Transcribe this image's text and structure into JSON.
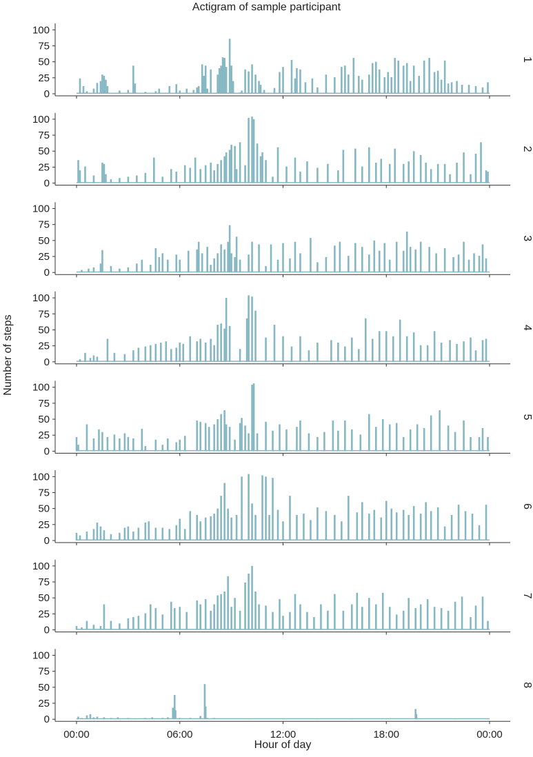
{
  "chart_data": {
    "type": "bar",
    "title": "Actigram of sample participant",
    "xlabel": "Hour of day",
    "ylabel": "Number of steps",
    "x_ticks": [
      "00:00",
      "06:00",
      "12:00",
      "18:00",
      "00:00"
    ],
    "x_range_hours": [
      0,
      24
    ],
    "y_ticks": [
      0,
      25,
      50,
      75,
      100
    ],
    "ylim": [
      0,
      110
    ],
    "bar_color": "#86b8c3",
    "grid": false,
    "panels": [
      {
        "facet_label": "1",
        "x_hour": [
          0.2,
          0.4,
          0.6,
          1.0,
          1.2,
          1.4,
          1.5,
          1.6,
          1.7,
          1.8,
          2.5,
          3.0,
          3.3,
          3.4,
          4.0,
          4.6,
          4.8,
          5.4,
          5.8,
          6.0,
          6.4,
          6.8,
          7.0,
          7.1,
          7.3,
          7.4,
          7.5,
          7.6,
          7.8,
          8.2,
          8.3,
          8.4,
          8.5,
          8.6,
          8.7,
          8.9,
          9.0,
          9.1,
          9.5,
          9.6,
          9.8,
          10.0,
          10.2,
          10.4,
          10.6,
          10.7,
          10.9,
          11.5,
          11.8,
          12.0,
          12.5,
          12.7,
          12.8,
          13.0,
          13.3,
          13.7,
          14.0,
          14.5,
          15.0,
          15.4,
          15.6,
          15.8,
          16.1,
          16.4,
          16.6,
          17.0,
          17.2,
          17.4,
          17.6,
          17.9,
          18.1,
          18.3,
          18.5,
          18.7,
          19.0,
          19.2,
          19.4,
          19.6,
          19.9,
          20.2,
          20.5,
          20.8,
          21.0,
          21.2,
          21.4,
          21.6,
          21.8,
          22.1,
          22.4,
          22.8,
          23.2,
          23.6,
          23.9
        ],
        "values": [
          24,
          12,
          4,
          8,
          17,
          20,
          30,
          28,
          22,
          12,
          5,
          6,
          44,
          16,
          3,
          4,
          8,
          12,
          15,
          5,
          8,
          6,
          10,
          12,
          46,
          28,
          44,
          8,
          38,
          30,
          40,
          44,
          57,
          56,
          42,
          86,
          44,
          20,
          2,
          5,
          38,
          35,
          46,
          30,
          20,
          14,
          6,
          9,
          34,
          42,
          53,
          24,
          40,
          38,
          18,
          24,
          10,
          30,
          26,
          42,
          44,
          30,
          56,
          28,
          22,
          30,
          48,
          50,
          38,
          26,
          34,
          26,
          56,
          52,
          44,
          48,
          20,
          44,
          28,
          52,
          56,
          34,
          36,
          22,
          52,
          16,
          18,
          20,
          14,
          14,
          12,
          10,
          18
        ]
      },
      {
        "facet_label": "2",
        "x_hour": [
          0.1,
          0.2,
          0.5,
          1.0,
          1.5,
          1.6,
          1.7,
          2.0,
          2.5,
          3.0,
          3.5,
          4.0,
          4.5,
          5.0,
          5.5,
          5.8,
          6.3,
          6.6,
          6.9,
          7.2,
          7.5,
          7.8,
          8.0,
          8.2,
          8.4,
          8.6,
          8.7,
          8.9,
          9.0,
          9.2,
          9.3,
          9.5,
          9.8,
          10.0,
          10.2,
          10.3,
          10.5,
          10.7,
          10.8,
          11.0,
          11.4,
          11.7,
          12.2,
          12.7,
          13.0,
          13.4,
          14.0,
          14.6,
          15.2,
          15.5,
          16.2,
          16.6,
          17.0,
          17.4,
          17.7,
          18.2,
          18.5,
          19.0,
          19.3,
          19.6,
          20.0,
          20.3,
          20.6,
          21.0,
          21.4,
          21.7,
          22.1,
          22.5,
          22.9,
          23.2,
          23.5,
          23.8,
          23.9
        ],
        "values": [
          36,
          20,
          26,
          12,
          32,
          30,
          14,
          6,
          8,
          10,
          12,
          16,
          40,
          10,
          22,
          18,
          28,
          24,
          40,
          22,
          28,
          32,
          20,
          30,
          36,
          42,
          48,
          52,
          60,
          58,
          22,
          64,
          28,
          102,
          104,
          100,
          62,
          42,
          48,
          36,
          10,
          56,
          26,
          40,
          18,
          34,
          24,
          30,
          20,
          52,
          54,
          26,
          56,
          32,
          38,
          30,
          54,
          30,
          34,
          50,
          44,
          32,
          22,
          30,
          30,
          14,
          32,
          48,
          14,
          46,
          64,
          20,
          18
        ]
      },
      {
        "facet_label": "3",
        "x_hour": [
          0.3,
          0.7,
          1.0,
          1.4,
          1.5,
          2.0,
          2.5,
          3.0,
          3.5,
          3.8,
          4.3,
          4.6,
          4.8,
          5.0,
          5.3,
          5.8,
          6.0,
          6.5,
          7.0,
          7.1,
          7.3,
          7.6,
          7.8,
          8.0,
          8.2,
          8.4,
          8.6,
          8.8,
          8.9,
          9.0,
          9.2,
          9.3,
          9.5,
          10.0,
          10.2,
          10.6,
          11.0,
          11.3,
          11.7,
          12.0,
          12.4,
          12.7,
          13.0,
          13.6,
          14.0,
          14.5,
          15.0,
          15.3,
          15.8,
          16.2,
          16.6,
          17.0,
          17.3,
          17.6,
          17.9,
          18.2,
          18.6,
          19.0,
          19.2,
          19.4,
          19.7,
          20.0,
          20.5,
          20.9,
          21.4,
          21.9,
          22.2,
          22.5,
          22.8,
          23.1,
          23.4,
          23.6,
          23.8
        ],
        "values": [
          4,
          6,
          8,
          14,
          35,
          10,
          6,
          8,
          14,
          20,
          12,
          38,
          24,
          30,
          20,
          28,
          20,
          34,
          36,
          48,
          30,
          40,
          12,
          22,
          30,
          44,
          36,
          48,
          74,
          30,
          24,
          56,
          20,
          28,
          48,
          44,
          10,
          44,
          20,
          46,
          22,
          48,
          30,
          54,
          16,
          24,
          42,
          48,
          26,
          46,
          40,
          28,
          50,
          34,
          46,
          20,
          48,
          34,
          64,
          40,
          36,
          48,
          40,
          30,
          38,
          24,
          28,
          48,
          20,
          30,
          26,
          44,
          22
        ]
      },
      {
        "facet_label": "4",
        "x_hour": [
          0.2,
          0.5,
          0.8,
          1.0,
          1.2,
          1.8,
          2.2,
          2.8,
          3.3,
          3.6,
          4.0,
          4.3,
          4.6,
          4.9,
          5.2,
          5.5,
          5.8,
          6.0,
          6.2,
          6.6,
          7.0,
          7.2,
          7.5,
          7.8,
          8.0,
          8.2,
          8.4,
          8.6,
          8.7,
          8.9,
          9.5,
          9.9,
          10.0,
          10.2,
          10.4,
          11.0,
          11.5,
          12.0,
          12.5,
          13.0,
          13.5,
          14.0,
          14.8,
          15.2,
          15.6,
          16.0,
          16.4,
          16.8,
          17.2,
          17.6,
          18.0,
          18.4,
          18.8,
          19.2,
          19.6,
          20.0,
          20.4,
          20.8,
          21.2,
          21.7,
          22.1,
          22.5,
          22.9,
          23.2,
          23.6,
          23.8
        ],
        "values": [
          4,
          14,
          6,
          10,
          8,
          36,
          14,
          12,
          18,
          22,
          24,
          26,
          28,
          30,
          32,
          20,
          22,
          30,
          28,
          40,
          32,
          36,
          30,
          36,
          26,
          58,
          60,
          52,
          100,
          56,
          20,
          68,
          104,
          102,
          80,
          38,
          58,
          40,
          24,
          40,
          18,
          30,
          34,
          30,
          24,
          38,
          20,
          68,
          36,
          48,
          48,
          40,
          66,
          40,
          46,
          26,
          26,
          48,
          30,
          34,
          28,
          32,
          38,
          18,
          34,
          36
        ]
      },
      {
        "facet_label": "5",
        "x_hour": [
          0.0,
          0.1,
          0.6,
          1.0,
          1.3,
          1.5,
          1.8,
          2.2,
          2.5,
          2.8,
          3.0,
          3.3,
          3.8,
          4.0,
          4.6,
          5.0,
          5.3,
          5.8,
          6.0,
          6.3,
          7.0,
          7.2,
          7.5,
          7.7,
          8.0,
          8.2,
          8.4,
          8.6,
          8.7,
          8.9,
          9.2,
          9.5,
          9.6,
          9.8,
          10.0,
          10.2,
          10.3,
          10.5,
          11.0,
          11.4,
          11.8,
          12.2,
          12.8,
          13.0,
          13.5,
          14.0,
          14.4,
          14.9,
          15.2,
          15.6,
          16.0,
          16.5,
          17.0,
          17.4,
          17.8,
          18.2,
          18.6,
          19.0,
          19.4,
          19.8,
          20.2,
          20.6,
          21.1,
          21.6,
          22.0,
          22.5,
          22.9,
          23.4,
          23.6,
          23.9
        ],
        "values": [
          22,
          10,
          42,
          20,
          34,
          30,
          22,
          26,
          20,
          28,
          22,
          20,
          35,
          8,
          18,
          10,
          20,
          14,
          18,
          24,
          48,
          46,
          44,
          38,
          42,
          50,
          58,
          64,
          42,
          38,
          18,
          44,
          52,
          40,
          28,
          104,
          106,
          28,
          46,
          32,
          42,
          34,
          38,
          48,
          28,
          22,
          30,
          48,
          32,
          48,
          34,
          26,
          58,
          38,
          50,
          42,
          44,
          22,
          34,
          42,
          36,
          56,
          64,
          40,
          30,
          48,
          22,
          22,
          36,
          22
        ]
      },
      {
        "facet_label": "6",
        "x_hour": [
          0.0,
          0.2,
          0.6,
          1.0,
          1.2,
          1.4,
          1.6,
          2.0,
          2.5,
          2.8,
          3.0,
          3.3,
          3.6,
          4.0,
          4.2,
          4.6,
          5.0,
          5.4,
          5.8,
          6.0,
          6.3,
          6.6,
          7.0,
          7.2,
          7.5,
          7.8,
          8.0,
          8.2,
          8.4,
          8.6,
          8.8,
          9.0,
          9.3,
          9.6,
          10.0,
          10.2,
          10.4,
          10.8,
          11.0,
          11.2,
          11.4,
          11.7,
          12.0,
          12.4,
          12.8,
          13.2,
          13.6,
          14.0,
          14.5,
          15.0,
          15.4,
          15.8,
          16.3,
          16.6,
          17.0,
          17.3,
          17.7,
          18.0,
          18.3,
          18.6,
          19.0,
          19.3,
          19.6,
          20.0,
          20.3,
          20.6,
          21.0,
          21.4,
          21.8,
          22.2,
          22.6,
          23.0,
          23.4,
          23.8
        ],
        "values": [
          12,
          8,
          14,
          18,
          28,
          22,
          16,
          10,
          12,
          20,
          22,
          14,
          20,
          28,
          30,
          20,
          20,
          18,
          24,
          34,
          18,
          46,
          40,
          30,
          36,
          38,
          42,
          50,
          70,
          90,
          50,
          36,
          40,
          100,
          104,
          58,
          40,
          102,
          100,
          40,
          98,
          48,
          30,
          70,
          40,
          42,
          32,
          52,
          46,
          40,
          30,
          70,
          44,
          60,
          42,
          48,
          36,
          62,
          50,
          44,
          48,
          40,
          54,
          42,
          60,
          46,
          52,
          22,
          40,
          56,
          46,
          42,
          24,
          56
        ]
      },
      {
        "facet_label": "7",
        "x_hour": [
          0.0,
          0.3,
          0.6,
          1.0,
          1.4,
          1.6,
          2.0,
          2.5,
          3.0,
          3.3,
          3.6,
          4.0,
          4.3,
          4.6,
          5.0,
          5.5,
          5.7,
          6.0,
          6.4,
          7.0,
          7.2,
          7.5,
          7.8,
          8.0,
          8.2,
          8.4,
          8.6,
          8.8,
          9.0,
          9.2,
          9.5,
          9.8,
          10.0,
          10.2,
          10.4,
          10.6,
          11.0,
          11.4,
          11.8,
          12.0,
          12.4,
          12.7,
          13.0,
          13.4,
          13.8,
          14.2,
          14.6,
          15.0,
          15.5,
          16.0,
          16.3,
          16.6,
          17.0,
          17.4,
          17.8,
          18.2,
          18.6,
          19.0,
          19.3,
          19.7,
          20.0,
          20.4,
          20.8,
          21.2,
          21.6,
          22.0,
          22.4,
          22.9,
          23.2,
          23.6,
          23.9
        ],
        "values": [
          6,
          4,
          14,
          8,
          6,
          40,
          14,
          10,
          18,
          20,
          22,
          26,
          40,
          34,
          24,
          44,
          34,
          36,
          28,
          46,
          40,
          48,
          30,
          40,
          54,
          56,
          60,
          84,
          36,
          50,
          30,
          74,
          88,
          100,
          60,
          40,
          38,
          28,
          48,
          22,
          28,
          56,
          40,
          28,
          20,
          40,
          30,
          56,
          30,
          40,
          58,
          36,
          50,
          40,
          58,
          36,
          24,
          30,
          50,
          34,
          40,
          48,
          36,
          34,
          30,
          44,
          52,
          20,
          38,
          52,
          14
        ]
      },
      {
        "facet_label": "8",
        "x_hour": [
          0.1,
          0.3,
          0.6,
          0.8,
          1.0,
          1.2,
          1.6,
          2.0,
          2.4,
          3.0,
          3.4,
          4.0,
          4.4,
          5.0,
          5.3,
          5.6,
          5.7,
          5.75,
          6.0,
          6.6,
          7.2,
          7.45,
          7.5,
          7.6,
          8.0,
          10.0,
          12.0,
          14.0,
          16.0,
          18.0,
          19.7,
          19.75,
          20.0,
          22.0,
          23.9
        ],
        "values": [
          4,
          2,
          6,
          8,
          3,
          4,
          3,
          2,
          3,
          2,
          1,
          2,
          3,
          2,
          3,
          18,
          38,
          14,
          2,
          2,
          5,
          55,
          20,
          2,
          2,
          1,
          1,
          1,
          1,
          1,
          16,
          8,
          1,
          1,
          1
        ]
      }
    ]
  }
}
